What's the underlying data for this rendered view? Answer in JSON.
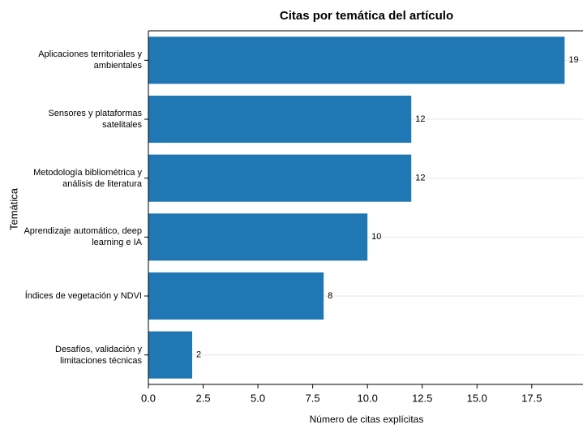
{
  "chart_data": {
    "type": "barh",
    "title": "Citas por temática del artículo",
    "xlabel": "Número de citas explícitas",
    "ylabel": "Temática",
    "categories": [
      "Aplicaciones territoriales y\nambientales",
      "Sensores y plataformas\nsatelitales",
      "Metodología bibliométrica y\nanálisis de literatura",
      "Aprendizaje automático, deep\nlearning e IA",
      "Índices de vegetación y NDVI",
      "Desafíos, validación y\nlimitaciones técnicas"
    ],
    "values": [
      19,
      12,
      12,
      10,
      8,
      2
    ],
    "color": "#1f77b4",
    "xlim": [
      0,
      19.95
    ],
    "xticks": [
      {
        "value": 0,
        "label": "0.0"
      },
      {
        "value": 2.5,
        "label": "2.5"
      },
      {
        "value": 5,
        "label": "5.0"
      },
      {
        "value": 7.5,
        "label": "7.5"
      },
      {
        "value": 10,
        "label": "10.0"
      },
      {
        "value": 12.5,
        "label": "12.5"
      },
      {
        "value": 15,
        "label": "15.0"
      },
      {
        "value": 17.5,
        "label": "17.5"
      }
    ],
    "grid": true
  }
}
